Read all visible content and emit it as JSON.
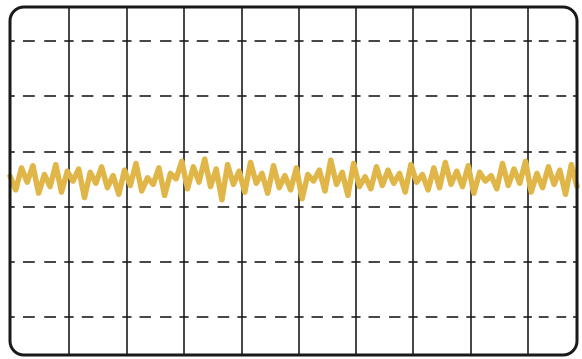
{
  "screen": {
    "background_color": "#ffffff",
    "border_color": "#1a1a1a",
    "grid_color": "#1a1a1a"
  },
  "trace": {
    "color": "#e0b648",
    "signal": "noise",
    "samples": [
      0.18,
      -0.45,
      0.55,
      -0.1,
      0.65,
      -0.6,
      0.25,
      -0.3,
      0.7,
      -0.55,
      0.4,
      -0.05,
      0.5,
      -0.8,
      0.35,
      -0.15,
      0.6,
      -0.35,
      0.2,
      -0.65,
      0.45,
      -0.25,
      0.75,
      -0.5,
      0.1,
      -0.2,
      0.55,
      -0.7,
      0.3,
      0.05,
      0.85,
      -0.4,
      0.6,
      -0.1,
      0.95,
      -0.3,
      0.5,
      -0.9,
      0.7,
      -0.2,
      0.4,
      -0.55,
      0.8,
      -0.15,
      0.3,
      -0.6,
      0.65,
      -0.35,
      0.2,
      -0.45,
      0.55,
      -0.85,
      0.25,
      -0.05,
      0.45,
      -0.5,
      0.9,
      -0.2,
      0.35,
      -0.7,
      0.75,
      -0.3,
      0.15,
      -0.4,
      0.6,
      -0.25,
      0.45,
      -0.15,
      0.3,
      -0.55,
      0.7,
      -0.1,
      0.25,
      -0.45,
      0.55,
      -0.35,
      0.8,
      -0.2,
      0.4,
      -0.3,
      0.65,
      -0.6,
      0.35,
      -0.05,
      0.2,
      -0.4,
      0.75,
      -0.25,
      0.5,
      -0.15,
      0.85,
      -0.55,
      0.3,
      -0.35,
      0.6,
      -0.2,
      0.45,
      -0.65,
      0.7,
      -0.3
    ]
  }
}
